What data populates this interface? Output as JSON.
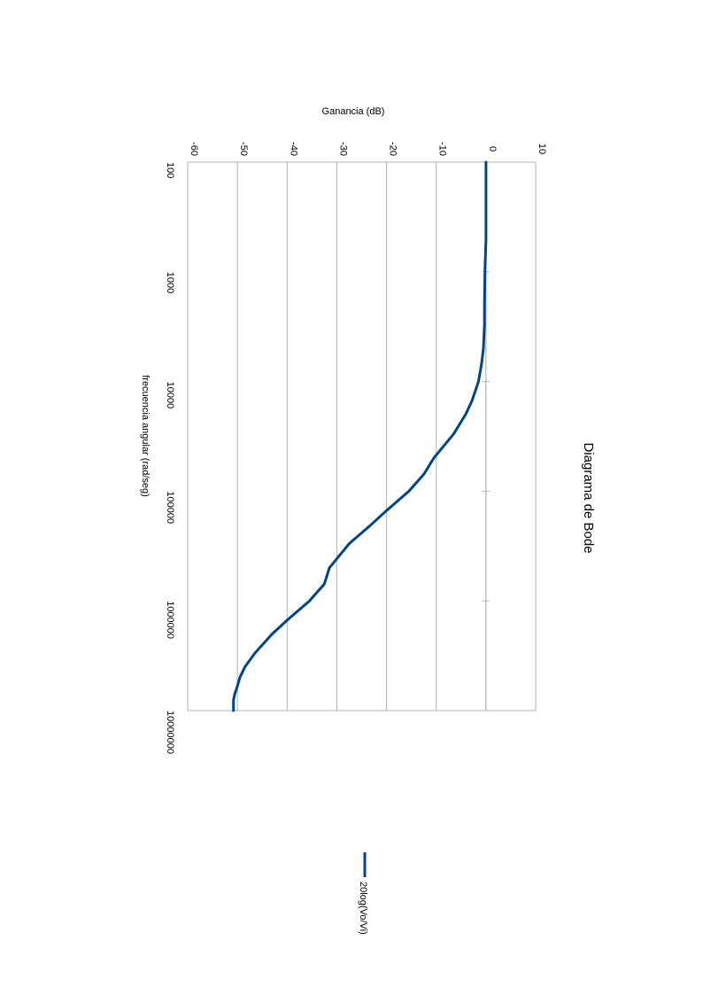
{
  "chart_data": {
    "type": "line",
    "title": "Diagrama de Bode",
    "xlabel": "frecuencia angular (rad/seg)",
    "ylabel": "Ganancia (dB)",
    "x_scale": "log",
    "xlim": [
      100,
      10000000
    ],
    "ylim": [
      -60,
      10
    ],
    "x_tick_labels": [
      "100",
      "1000",
      "10000",
      "100000",
      "1000000",
      "10000000"
    ],
    "y_tick_labels": [
      "-60",
      "-50",
      "-40",
      "-30",
      "-20",
      "-10",
      "0",
      "10"
    ],
    "grid": true,
    "legend_position": "right",
    "series": [
      {
        "name": "20log(Vo/Vi)",
        "color": "#004586",
        "x": [
          100,
          200,
          500,
          1000,
          2000,
          3000,
          5000,
          7000,
          10000,
          15000,
          20000,
          30000,
          50000,
          70000,
          100000,
          150000,
          200000,
          300000,
          500000,
          700000,
          1000000,
          1500000,
          2000000,
          3000000,
          4000000,
          5000000,
          6000000,
          7000000,
          8000000,
          10000000
        ],
        "y": [
          0,
          0,
          0,
          -0.2,
          -0.3,
          -0.3,
          -0.5,
          -0.9,
          -1.5,
          -2.8,
          -4.1,
          -6.5,
          -10.5,
          -12.5,
          -15.5,
          -20,
          -23,
          -27.5,
          -31.5,
          -32.5,
          -35.5,
          -40,
          -43,
          -46.5,
          -48.5,
          -49.5,
          -50,
          -50.5,
          -50.8,
          -50.8
        ]
      }
    ]
  }
}
